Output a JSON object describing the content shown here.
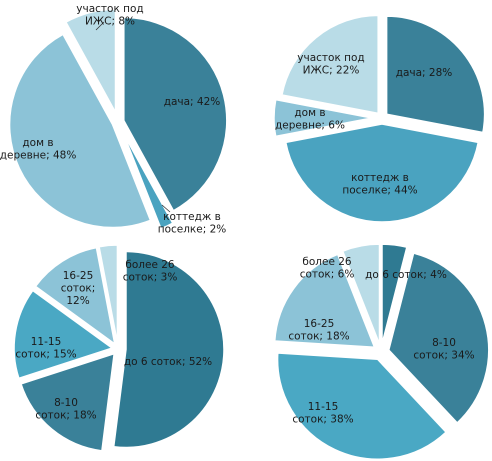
{
  "chart_data": [
    {
      "type": "pie",
      "title": "",
      "slices": [
        {
          "label": "дача; 42%",
          "value": 42,
          "color": "#3a8199"
        },
        {
          "label": "коттедж в поселке; 2%",
          "value": 2,
          "color": "#4aa3c0"
        },
        {
          "label": "дом в деревне; 48%",
          "value": 48,
          "color": "#8cc3d7"
        },
        {
          "label": "участок под ИЖС; 8%",
          "value": 8,
          "color": "#b9dce7"
        }
      ]
    },
    {
      "type": "pie",
      "title": "",
      "slices": [
        {
          "label": "дача; 28%",
          "value": 28,
          "color": "#3a8199"
        },
        {
          "label": "коттедж в поселке; 44%",
          "value": 44,
          "color": "#4aa3c0"
        },
        {
          "label": "дом в деревне; 6%",
          "value": 6,
          "color": "#8cc3d7"
        },
        {
          "label": "участок под ИЖС; 22%",
          "value": 22,
          "color": "#b9dce7"
        }
      ]
    },
    {
      "type": "pie",
      "title": "",
      "slices": [
        {
          "label": "до 6 соток; 52%",
          "value": 52,
          "color": "#2f7a92"
        },
        {
          "label": "8-10 соток; 18%",
          "value": 18,
          "color": "#3a8199"
        },
        {
          "label": "11-15 соток; 15%",
          "value": 15,
          "color": "#4aa8c4"
        },
        {
          "label": "16-25 соток; 12%",
          "value": 12,
          "color": "#8cc3d7"
        },
        {
          "label": "более 26 соток; 3%",
          "value": 3,
          "color": "#b9dce7"
        }
      ]
    },
    {
      "type": "pie",
      "title": "",
      "slices": [
        {
          "label": "до 6 соток; 4%",
          "value": 4,
          "color": "#2f7a92"
        },
        {
          "label": "8-10 соток; 34%",
          "value": 34,
          "color": "#3a8199"
        },
        {
          "label": "11-15 соток; 38%",
          "value": 38,
          "color": "#4aa8c4"
        },
        {
          "label": "16-25 соток; 18%",
          "value": 18,
          "color": "#8cc3d7"
        },
        {
          "label": "более 26 соток; 6%",
          "value": 6,
          "color": "#b9dce7"
        }
      ]
    }
  ]
}
